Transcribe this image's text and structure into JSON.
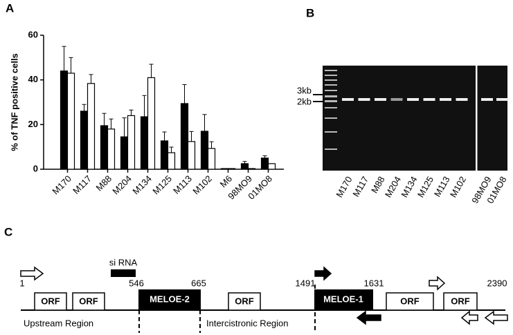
{
  "chart_data": {
    "type": "bar",
    "panel": "A",
    "ylabel": "% of TNF positive cells",
    "categories": [
      "M170",
      "M117",
      "M88",
      "M204",
      "M134",
      "M125",
      "M113",
      "M102",
      "M6",
      "98MO9",
      "01MO8"
    ],
    "series": [
      {
        "color": "#000000",
        "values": [
          44,
          26,
          19.5,
          14.5,
          23.5,
          12.7,
          29.4,
          17,
          0.3,
          2.5,
          5
        ],
        "errors": [
          11,
          3,
          5.5,
          8.5,
          9.5,
          4,
          8.5,
          7.5,
          0,
          1,
          1
        ]
      },
      {
        "color": "#ffffff",
        "values": [
          43,
          38.4,
          18,
          24,
          41,
          7.4,
          12.4,
          9.3,
          0.3,
          0.3,
          2.5
        ],
        "errors": [
          7,
          4,
          4.5,
          2.5,
          6,
          2.5,
          4.5,
          3,
          0,
          0,
          0
        ]
      }
    ],
    "ylim": [
      0,
      60
    ],
    "yticks": [
      0,
      20,
      40,
      60
    ]
  },
  "gel": {
    "panel": "B",
    "markers": [
      "3kb",
      "2kb"
    ],
    "lanes": [
      "M170",
      "M117",
      "M88",
      "M204",
      "M134",
      "M125",
      "M113",
      "M102",
      "98MO9",
      "01MO8"
    ]
  },
  "diagram": {
    "panel": "C",
    "sirna": "si RNA",
    "positions": [
      "1",
      "546",
      "665",
      "1491",
      "1631",
      "2390"
    ],
    "orf": "ORF",
    "meloe2": "MELOE-2",
    "meloe1": "MELOE-1",
    "regions": [
      "Upstream Region",
      "Intercistronic Region"
    ]
  }
}
